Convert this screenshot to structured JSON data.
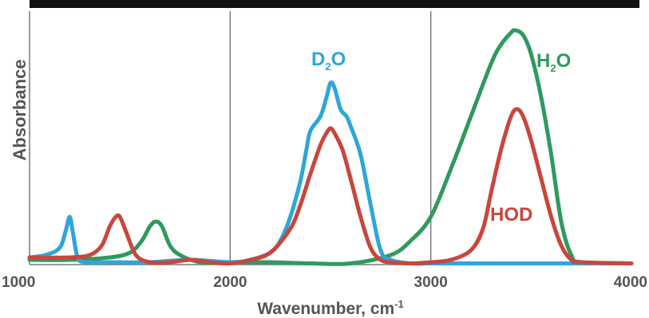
{
  "chart_data": {
    "type": "line",
    "title": "",
    "xlabel": "Wavenumber, cm",
    "xlabel_superscript": "-1",
    "ylabel": "Absorbance",
    "xlim": [
      1000,
      4000
    ],
    "ylim": [
      0,
      1.0
    ],
    "x_ticks": [
      1000,
      2000,
      3000,
      4000
    ],
    "x_tick_labels": [
      "1000",
      "2000",
      "3000",
      "4000"
    ],
    "vertical_gridlines": [
      2000,
      3000
    ],
    "legend": "none (direct labels on curves)",
    "series": [
      {
        "name": "D2O",
        "label_main": "D",
        "label_sub": "2",
        "label_tail": "O",
        "color": "#2ea6dc",
        "x": [
          1000,
          1080,
          1150,
          1180,
          1200,
          1215,
          1240,
          1280,
          1400,
          1600,
          1800,
          2000,
          2100,
          2200,
          2250,
          2300,
          2350,
          2380,
          2400,
          2450,
          2480,
          2500,
          2520,
          2550,
          2580,
          2600,
          2650,
          2700,
          2750,
          2800,
          2900,
          3000,
          3200,
          3500,
          4000
        ],
        "y": [
          0.03,
          0.04,
          0.07,
          0.14,
          0.2,
          0.14,
          0.03,
          0.01,
          0.01,
          0.01,
          0.02,
          0.01,
          0.02,
          0.05,
          0.1,
          0.2,
          0.35,
          0.48,
          0.56,
          0.62,
          0.7,
          0.76,
          0.74,
          0.65,
          0.62,
          0.58,
          0.46,
          0.25,
          0.06,
          0.02,
          0.005,
          0.005,
          0.005,
          0.005,
          0.005
        ]
      },
      {
        "name": "H2O",
        "label_main": "H",
        "label_sub": "2",
        "label_tail": "O",
        "color": "#2e9a5e",
        "x": [
          1000,
          1200,
          1400,
          1500,
          1560,
          1600,
          1630,
          1660,
          1700,
          1750,
          1850,
          2000,
          2200,
          2400,
          2600,
          2800,
          2900,
          3000,
          3100,
          3200,
          3300,
          3350,
          3400,
          3420,
          3460,
          3500,
          3550,
          3600,
          3650,
          3700,
          3750,
          4000
        ],
        "y": [
          0.02,
          0.02,
          0.03,
          0.05,
          0.1,
          0.16,
          0.18,
          0.16,
          0.08,
          0.04,
          0.01,
          0.01,
          0.01,
          0.005,
          0.005,
          0.04,
          0.1,
          0.2,
          0.4,
          0.62,
          0.84,
          0.92,
          0.97,
          0.98,
          0.96,
          0.88,
          0.7,
          0.46,
          0.18,
          0.04,
          0.01,
          0.005
        ]
      },
      {
        "name": "HOD",
        "label_main": "HOD",
        "label_sub": "",
        "label_tail": "",
        "color": "#c9463d",
        "x": [
          1000,
          1200,
          1300,
          1360,
          1400,
          1430,
          1450,
          1480,
          1530,
          1600,
          1700,
          1800,
          1900,
          2000,
          2100,
          2200,
          2300,
          2350,
          2400,
          2450,
          2480,
          2500,
          2520,
          2560,
          2600,
          2650,
          2700,
          2750,
          2800,
          2900,
          3000,
          3100,
          3200,
          3260,
          3300,
          3350,
          3400,
          3430,
          3460,
          3500,
          3550,
          3600,
          3650,
          3700,
          3750,
          4000
        ],
        "y": [
          0.03,
          0.03,
          0.04,
          0.08,
          0.16,
          0.2,
          0.2,
          0.14,
          0.04,
          0.01,
          0.01,
          0.02,
          0.01,
          0.005,
          0.02,
          0.05,
          0.15,
          0.25,
          0.38,
          0.5,
          0.55,
          0.57,
          0.55,
          0.48,
          0.36,
          0.2,
          0.07,
          0.02,
          0.01,
          0.005,
          0.01,
          0.02,
          0.06,
          0.15,
          0.3,
          0.48,
          0.62,
          0.65,
          0.62,
          0.52,
          0.36,
          0.2,
          0.08,
          0.02,
          0.01,
          0.005
        ]
      }
    ]
  }
}
